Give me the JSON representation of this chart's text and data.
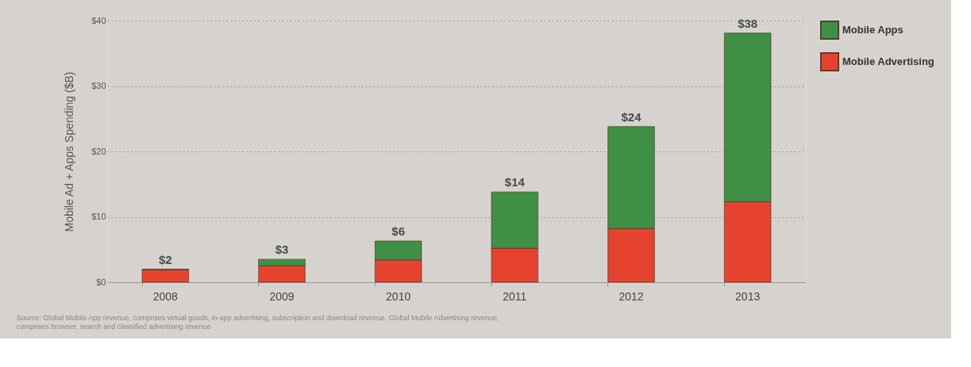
{
  "chart_data": {
    "type": "bar",
    "stacked": true,
    "ylabel": "Mobile Ad + Apps Spending ($B)",
    "categories": [
      "2008",
      "2009",
      "2010",
      "2011",
      "2012",
      "2013"
    ],
    "series": [
      {
        "name": "Mobile Advertising",
        "color": "#e5432f",
        "values": [
          1.9,
          2.5,
          3.4,
          5.2,
          8.2,
          12.3
        ]
      },
      {
        "name": "Mobile Apps",
        "color": "#3f8f45",
        "values": [
          0.1,
          1.0,
          2.9,
          8.6,
          15.6,
          25.8
        ]
      }
    ],
    "totals": [
      "$2",
      "$3",
      "$6",
      "$14",
      "$24",
      "$38"
    ],
    "ylim": [
      0,
      40
    ],
    "yticks": [
      {
        "value": 0,
        "label": "$0"
      },
      {
        "value": 10,
        "label": "$10"
      },
      {
        "value": 20,
        "label": "$20"
      },
      {
        "value": 30,
        "label": "$30"
      },
      {
        "value": 40,
        "label": "$40"
      }
    ],
    "grid": "y",
    "legend": "right",
    "annotations": [
      "Source: Global Mobile App revenue, comprises virtual goods, in-app advertising, subscription and download revenue. Global Mobile Advertising revenue, comprises browser, search and classified advertising revenue"
    ]
  }
}
